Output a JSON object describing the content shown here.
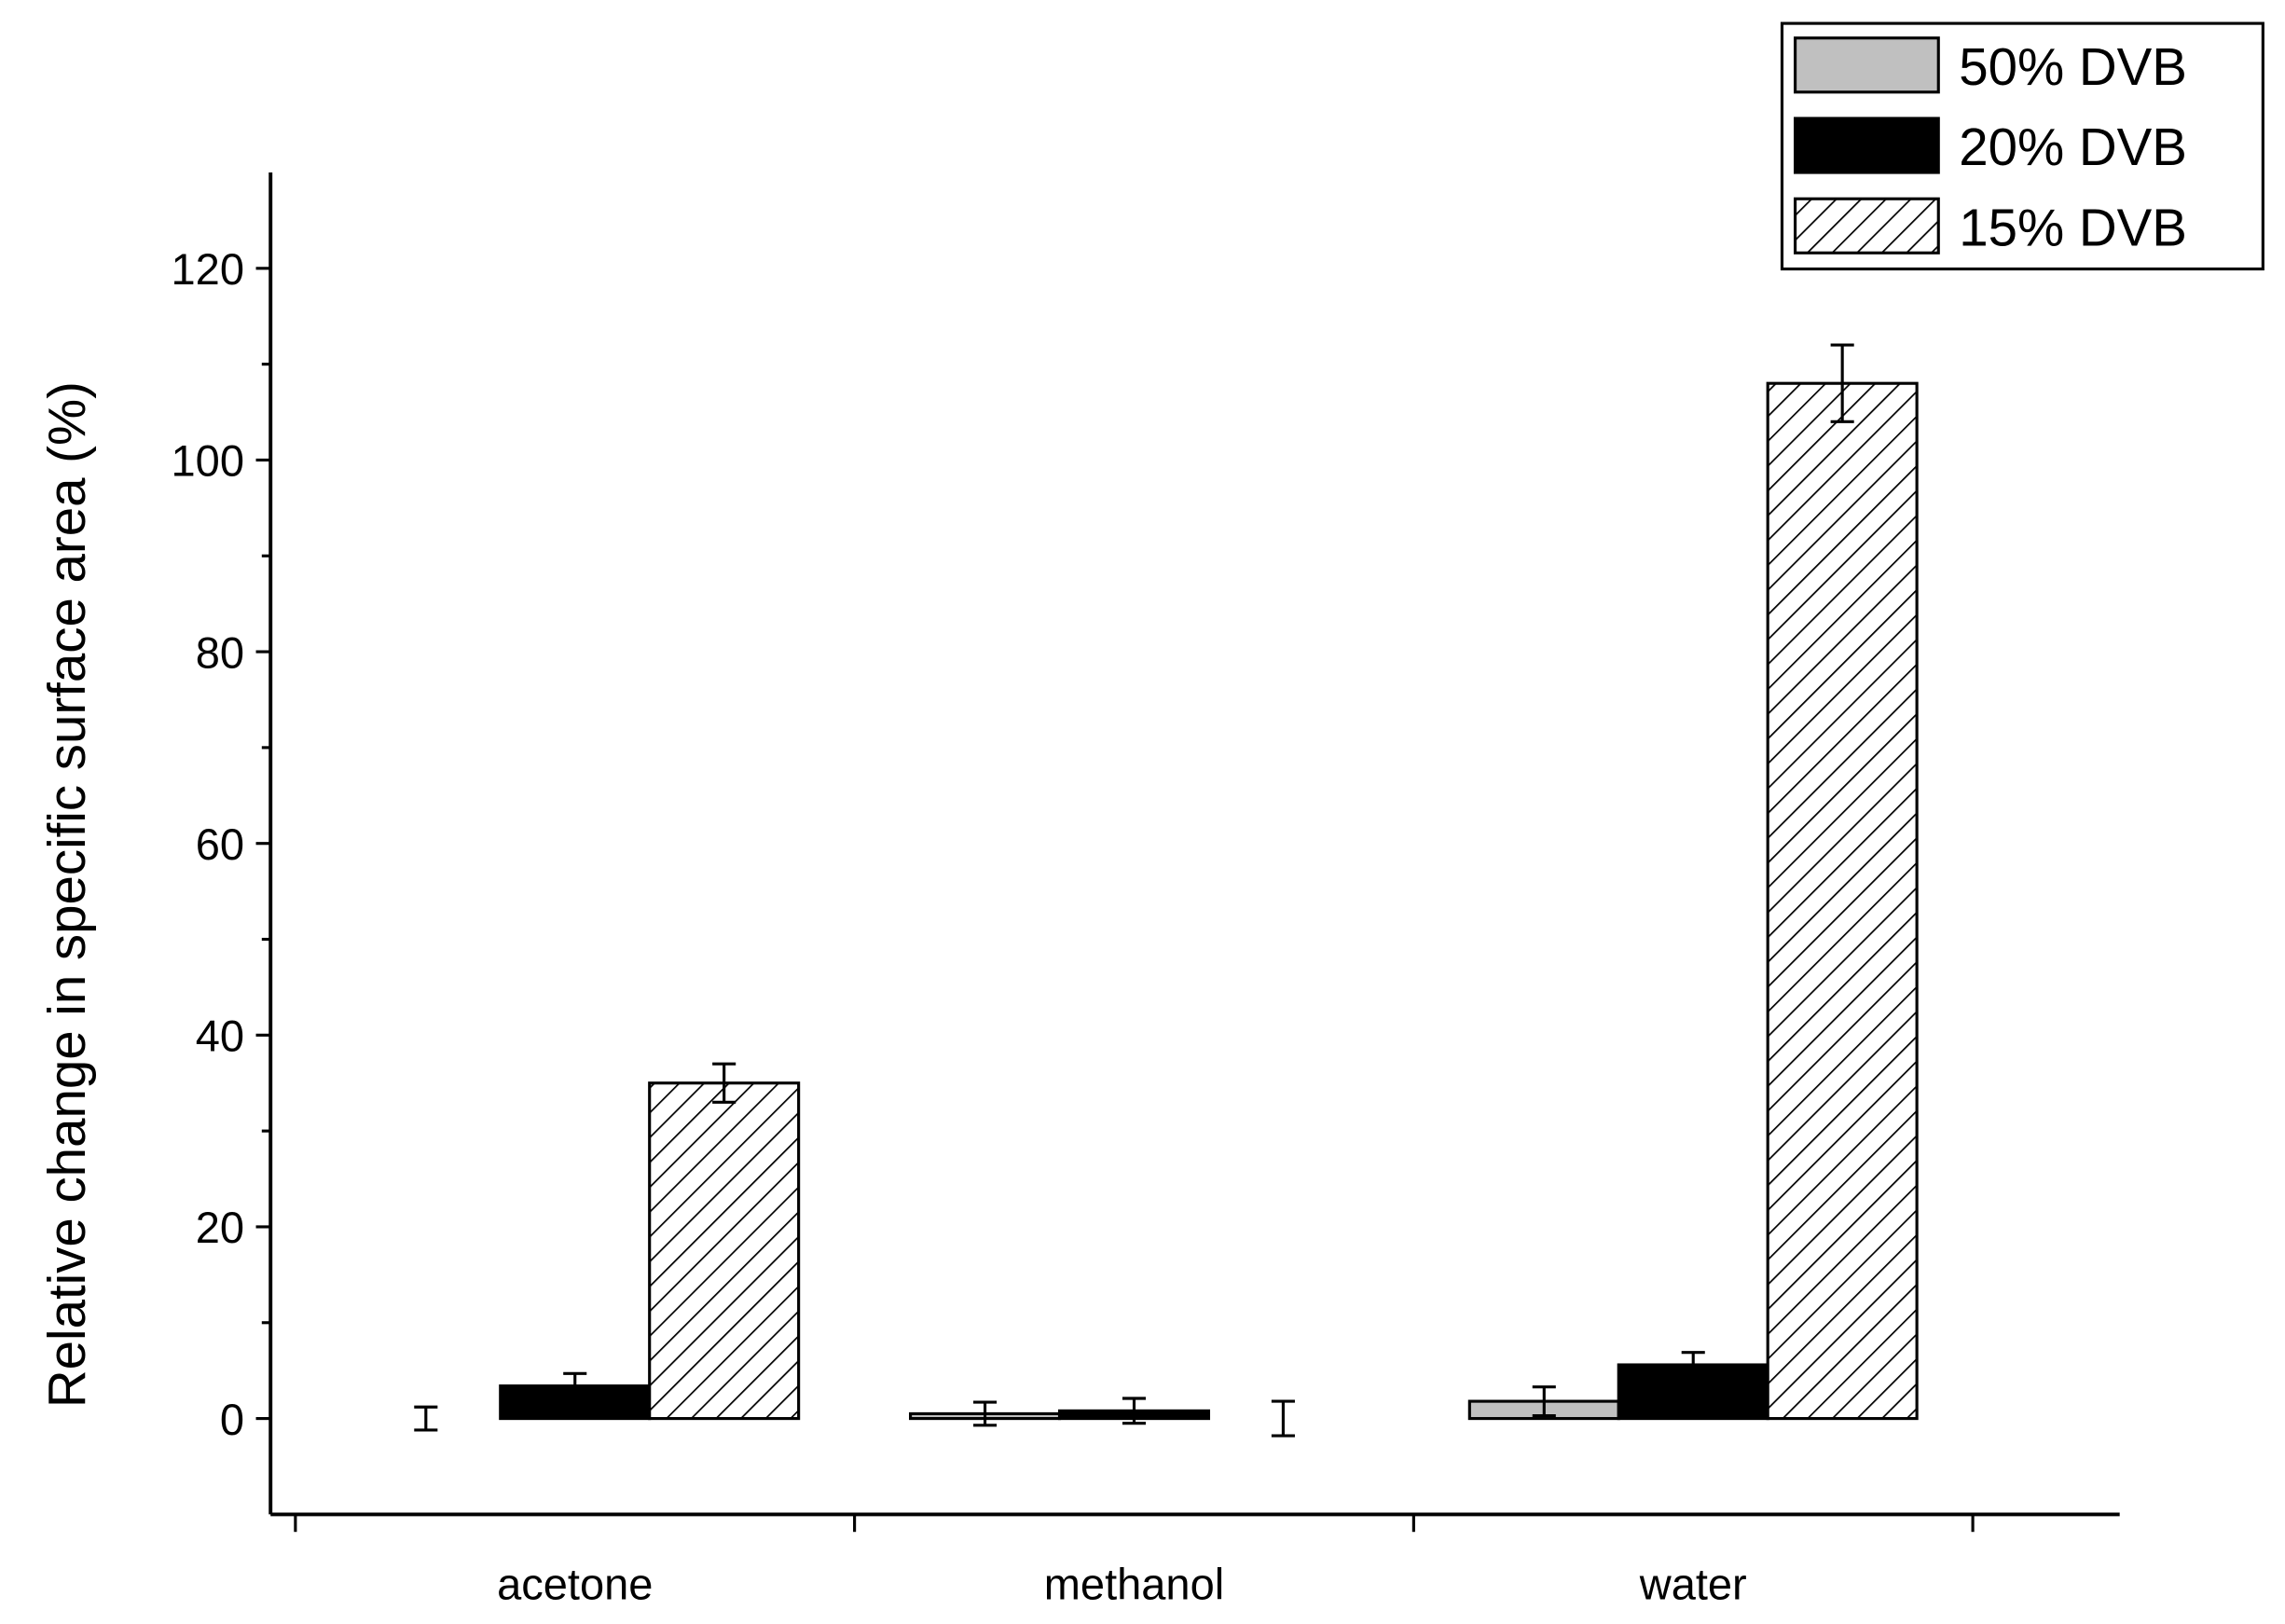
{
  "chart_data": {
    "type": "bar",
    "y_label": "Relative change in specific surface area (%)",
    "categories": [
      "acetone",
      "methanol",
      "water"
    ],
    "series": [
      {
        "name": "50% DVB",
        "color": "#c0c0c0",
        "hatch": false,
        "values": [
          0,
          0.5,
          1.8
        ],
        "errors": [
          1.2,
          1.2,
          1.5
        ]
      },
      {
        "name": "20% DVB",
        "color": "#000000",
        "hatch": false,
        "values": [
          3.4,
          0.8,
          5.6
        ],
        "errors": [
          1.3,
          1.3,
          1.3
        ]
      },
      {
        "name": "15% DVB",
        "color": "#ffffff",
        "hatch": true,
        "values": [
          35,
          0,
          108
        ],
        "errors": [
          2,
          1.8,
          4
        ]
      }
    ],
    "ylim": [
      -10,
      130
    ],
    "yticks": [
      0,
      20,
      40,
      60,
      80,
      100,
      120
    ],
    "grid": false,
    "legend_position": "upper right"
  }
}
